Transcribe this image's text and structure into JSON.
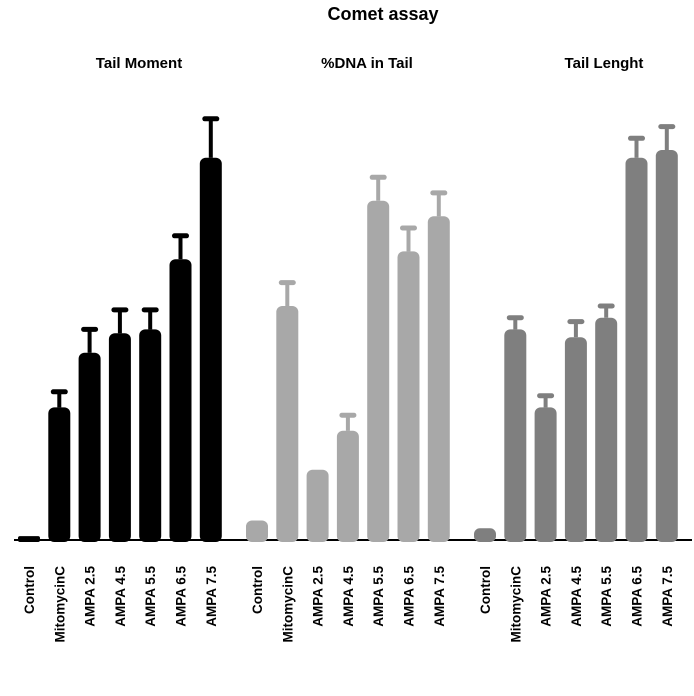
{
  "chart_data": {
    "type": "bar",
    "title": "Comet assay",
    "categories": [
      "Control",
      "MitomycinC",
      "AMPA 2.5",
      "AMPA 4.5",
      "AMPA 5.5",
      "AMPA 6.5",
      "AMPA 7.5"
    ],
    "error_bars": true,
    "grid": false,
    "legend": "none",
    "panels": [
      {
        "title": "Tail Moment",
        "color": "#000000",
        "values": [
          1,
          34,
          48,
          53,
          54,
          72,
          98
        ],
        "errors": [
          0,
          4,
          6,
          6,
          5,
          6,
          10
        ]
      },
      {
        "title": "%DNA in Tail",
        "color": "#a8a8a8",
        "values": [
          5,
          60,
          18,
          28,
          87,
          74,
          83
        ],
        "errors": [
          0,
          6,
          0,
          4,
          6,
          6,
          6
        ]
      },
      {
        "title": "Tail Lenght",
        "color": "#7f7f7f",
        "values": [
          3,
          54,
          34,
          52,
          57,
          98,
          100
        ],
        "errors": [
          0,
          3,
          3,
          4,
          3,
          5,
          6
        ]
      }
    ]
  }
}
